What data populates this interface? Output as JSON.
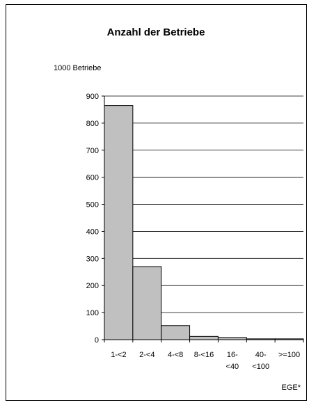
{
  "chart_data": {
    "type": "bar",
    "title": "Anzahl der Betriebe",
    "ylabel": "1000 Betriebe",
    "xlabel": "EGE*",
    "ylim": [
      0,
      900
    ],
    "yticks": [
      0,
      100,
      200,
      300,
      400,
      500,
      600,
      700,
      800,
      900
    ],
    "categories": [
      [
        "1-<2"
      ],
      [
        "2-<4"
      ],
      [
        "4-<8"
      ],
      [
        "8-<16"
      ],
      [
        "16-",
        "<40"
      ],
      [
        "40-",
        "<100"
      ],
      [
        ">=100"
      ]
    ],
    "values": [
      865,
      270,
      52,
      12,
      8,
      3,
      3
    ],
    "grid": true,
    "bar_color": "#c0c0c0"
  }
}
